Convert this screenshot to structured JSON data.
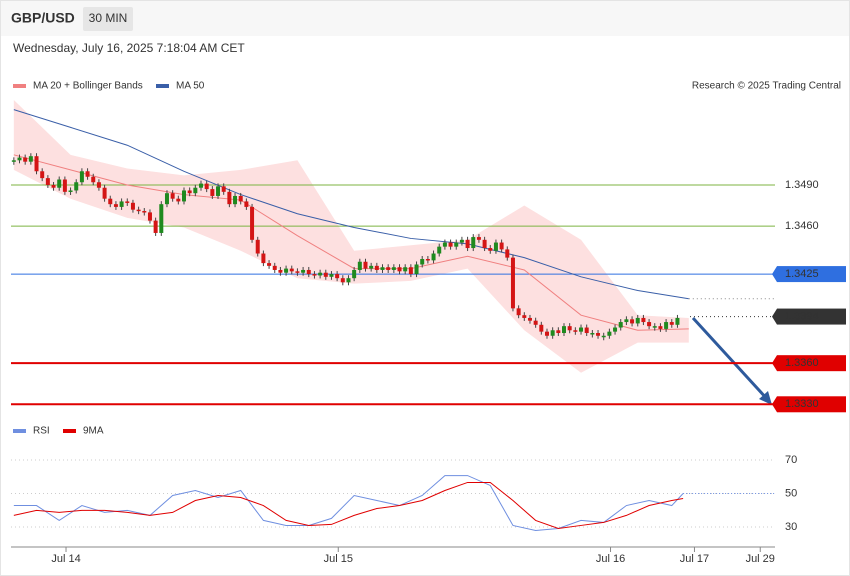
{
  "header": {
    "symbol": "GBP/USD",
    "interval": "30 MIN",
    "timestamp": "Wednesday, July 16, 2025 7:18:04 AM CET",
    "credit": "Research © 2025 Trading Central"
  },
  "chart_data": [
    {
      "type": "candlestick",
      "closes": [
        1.3508,
        1.351,
        1.3507,
        1.3511,
        1.35,
        1.3495,
        1.349,
        1.3488,
        1.3494,
        1.3485,
        1.3486,
        1.3492,
        1.35,
        1.3496,
        1.3492,
        1.3488,
        1.348,
        1.3476,
        1.3474,
        1.3478,
        1.3477,
        1.3472,
        1.3471,
        1.347,
        1.3464,
        1.3455,
        1.3476,
        1.3484,
        1.348,
        1.3478,
        1.3486,
        1.3484,
        1.3488,
        1.3491,
        1.3487,
        1.3482,
        1.3489,
        1.3485,
        1.3476,
        1.3482,
        1.3478,
        1.3474,
        1.345,
        1.344,
        1.3433,
        1.3431,
        1.3428,
        1.3426,
        1.3429,
        1.3427,
        1.3426,
        1.3428,
        1.3425,
        1.3424,
        1.3426,
        1.3423,
        1.3425,
        1.3422,
        1.3419,
        1.3422,
        1.3428,
        1.3434,
        1.3429,
        1.3431,
        1.3428,
        1.343,
        1.3428,
        1.343,
        1.3427,
        1.343,
        1.3425,
        1.3432,
        1.3436,
        1.3435,
        1.344,
        1.3445,
        1.3448,
        1.3445,
        1.3448,
        1.345,
        1.3444,
        1.3452,
        1.345,
        1.3444,
        1.3442,
        1.3448,
        1.3443,
        1.3437,
        1.34,
        1.3395,
        1.3393,
        1.3391,
        1.3388,
        1.3383,
        1.338,
        1.3384,
        1.3382,
        1.3387,
        1.3384,
        1.3383,
        1.3386,
        1.3382,
        1.3382,
        1.338,
        1.338,
        1.3383,
        1.3386,
        1.339,
        1.3392,
        1.3389,
        1.3393,
        1.339,
        1.3387,
        1.3387,
        1.3385,
        1.339,
        1.3388,
        1.3393
      ],
      "up_color": "#1f8a1f",
      "down_color": "#d41515",
      "xlim": [
        -0.5,
        134.2
      ],
      "ylim": [
        1.332,
        1.3552
      ],
      "xticks": [
        {
          "value": 9.2,
          "label": "Jul 14"
        },
        {
          "value": 57.2,
          "label": "Jul 15"
        },
        {
          "value": 105.2,
          "label": "Jul 16"
        },
        {
          "value": 120,
          "label": "Jul 17"
        },
        {
          "value": 131.6,
          "label": "Jul 29"
        }
      ],
      "series": [
        {
          "name": "MA 20 + Bollinger Bands",
          "color": "#f08080",
          "band_color": "#fde0e0",
          "x": [
            0,
            10,
            20,
            30,
            40,
            50,
            60,
            70,
            80,
            90,
            100,
            110,
            119
          ],
          "values": [
            1.3512,
            1.3501,
            1.349,
            1.3483,
            1.3479,
            1.3453,
            1.3429,
            1.3429,
            1.3438,
            1.3428,
            1.3395,
            1.3384,
            1.3385
          ],
          "upper": [
            1.3552,
            1.3512,
            1.3502,
            1.3497,
            1.3501,
            1.3508,
            1.3442,
            1.3446,
            1.345,
            1.3475,
            1.345,
            1.3395,
            1.3393
          ],
          "lower": [
            1.3501,
            1.348,
            1.3466,
            1.3459,
            1.3442,
            1.3422,
            1.3418,
            1.342,
            1.3429,
            1.3384,
            1.3353,
            1.3375,
            1.3375
          ]
        },
        {
          "name": "MA 50",
          "color": "#3a5fa8",
          "x": [
            0,
            10,
            20,
            30,
            40,
            50,
            60,
            70,
            80,
            90,
            100,
            110,
            119
          ],
          "values": [
            1.3545,
            1.3532,
            1.3519,
            1.35,
            1.3483,
            1.3469,
            1.3459,
            1.3451,
            1.3447,
            1.3437,
            1.3423,
            1.3413,
            1.3407
          ]
        }
      ],
      "levels": [
        {
          "value": 1.349,
          "label": "1.3490",
          "color": "#7cb342",
          "boxed": false
        },
        {
          "value": 1.346,
          "label": "1.3460",
          "color": "#7cb342",
          "boxed": false
        },
        {
          "value": 1.3425,
          "label": "1.3425",
          "color": "#2f6fe0",
          "boxed": true
        },
        {
          "value": 1.3394,
          "label": "1.3394",
          "color": "#333333",
          "boxed": true,
          "dotted": true
        },
        {
          "value": 1.336,
          "label": "1.3360",
          "color": "#e00000",
          "boxed": true
        },
        {
          "value": 1.333,
          "label": "1.3330",
          "color": "#e00000",
          "boxed": true
        }
      ]
    },
    {
      "type": "line",
      "xlim": [
        -0.5,
        134.2
      ],
      "ylim": [
        20.4,
        77.2
      ],
      "yticks": [
        30,
        50,
        70
      ],
      "series": [
        {
          "name": "RSI",
          "color": "#6f8fe0",
          "x": [
            0,
            4,
            8,
            12,
            16,
            20,
            24,
            28,
            32,
            36,
            40,
            44,
            48,
            52,
            56,
            60,
            64,
            68,
            72,
            76,
            80,
            84,
            88,
            92,
            96,
            100,
            104,
            108,
            112,
            116,
            118
          ],
          "values": [
            42.8,
            42.8,
            33.9,
            42.8,
            38.7,
            39.9,
            36.9,
            48.8,
            51.8,
            47.6,
            51.8,
            33.9,
            30.9,
            30.9,
            35.1,
            48.8,
            45.8,
            42.8,
            48.8,
            60.7,
            60.7,
            54.8,
            30.9,
            27.9,
            29.1,
            33.9,
            32.7,
            42.8,
            45.8,
            42.8,
            50
          ]
        },
        {
          "name": "9MA",
          "color": "#e00000",
          "x": [
            0,
            4,
            8,
            12,
            16,
            20,
            24,
            28,
            32,
            36,
            40,
            44,
            48,
            52,
            56,
            60,
            64,
            68,
            72,
            76,
            80,
            84,
            88,
            92,
            96,
            100,
            104,
            108,
            112,
            116,
            118
          ],
          "values": [
            36.9,
            39.9,
            38.7,
            39.9,
            39.9,
            38.7,
            36.9,
            38.7,
            45.8,
            48.8,
            47.6,
            42.8,
            33.9,
            30.9,
            31.5,
            36.9,
            41,
            42.8,
            45.8,
            51.8,
            56.6,
            56.6,
            45.8,
            33.9,
            29.1,
            30.9,
            32.7,
            36.9,
            42.8,
            45.8,
            47
          ]
        }
      ]
    }
  ]
}
